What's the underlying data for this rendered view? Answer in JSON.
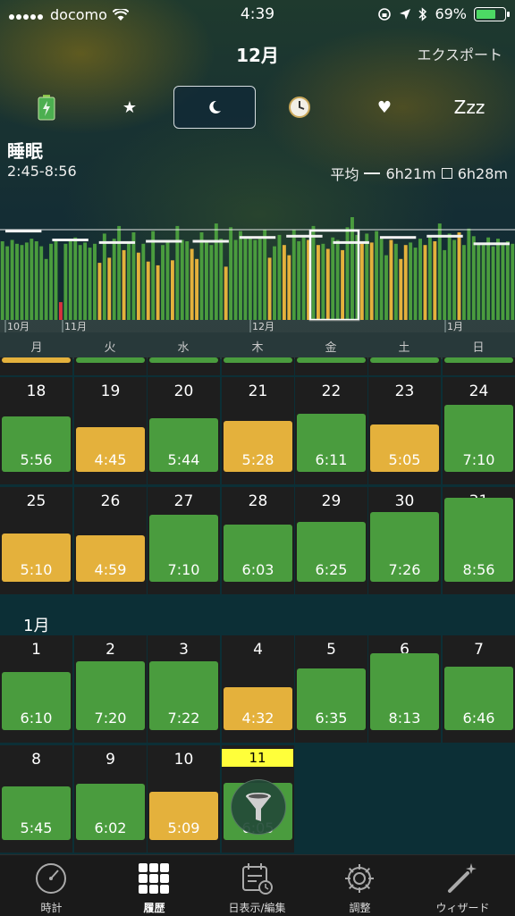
{
  "status_bar": {
    "carrier": "docomo",
    "time": "4:39",
    "battery": "69%",
    "battery_level": 0.69
  },
  "header": {
    "title": "12月",
    "export_label": "エクスポート"
  },
  "modes": {
    "zzz_label": "Zzz"
  },
  "summary": {
    "title": "睡眠",
    "range": "2:45-8:56",
    "avg_label": "平均",
    "avg_line_value": "6h21m",
    "avg_box_value": "6h28m"
  },
  "chart_data": {
    "type": "bar",
    "month_labels": [
      "10月",
      "11月",
      "12月",
      "1月"
    ],
    "values": [
      6.2,
      5.8,
      6.3,
      6.0,
      5.9,
      6.1,
      6.4,
      6.2,
      5.8,
      4.8,
      6.0,
      6.3,
      6.1,
      6.0,
      6.2,
      6.5,
      5.9,
      6.1,
      5.7,
      6.0,
      4.5,
      6.8,
      4.9,
      6.4,
      7.4,
      5.5,
      6.2,
      6.9,
      5.3,
      6.0,
      4.6,
      7.0,
      4.3,
      5.9,
      6.1,
      4.7,
      7.4,
      6.3,
      6.2,
      5.6,
      4.8,
      6.9,
      6.3,
      5.9,
      7.6,
      6.4,
      4.2,
      7.3,
      6.3,
      7.0,
      6.4,
      6.5,
      6.3,
      6.4,
      7.1,
      4.9,
      5.8,
      6.7,
      5.9,
      5.1,
      7.1,
      6.2,
      6.5,
      6.3,
      7.4,
      5.9,
      6.0,
      5.6,
      6.5,
      6.3,
      5.5,
      7.3,
      8.1,
      6.7,
      6.2,
      6.8,
      6.1,
      7.0,
      6.4,
      5.1,
      6.3,
      6.0,
      4.8,
      5.9,
      6.1,
      5.7,
      6.4,
      5.9,
      6.5,
      6.2,
      7.6,
      5.5,
      6.8,
      6.3,
      6.9,
      5.9,
      7.2,
      6.6,
      6.0,
      5.9,
      6.5,
      5.8,
      6.4,
      5.9,
      6.2,
      6.0
    ],
    "colors": [
      "g",
      "g",
      "g",
      "g",
      "g",
      "g",
      "g",
      "g",
      "g",
      "g",
      "g",
      "g",
      "r",
      "g",
      "g",
      "g",
      "g",
      "g",
      "g",
      "g",
      "y",
      "g",
      "y",
      "g",
      "g",
      "y",
      "g",
      "g",
      "y",
      "g",
      "y",
      "g",
      "y",
      "g",
      "g",
      "y",
      "g",
      "g",
      "g",
      "y",
      "y",
      "g",
      "g",
      "g",
      "g",
      "g",
      "y",
      "g",
      "g",
      "g",
      "g",
      "g",
      "g",
      "g",
      "g",
      "y",
      "g",
      "g",
      "y",
      "y",
      "g",
      "g",
      "g",
      "y",
      "g",
      "y",
      "g",
      "y",
      "g",
      "g",
      "y",
      "g",
      "g",
      "g",
      "y",
      "g",
      "y",
      "g",
      "g",
      "g",
      "y",
      "g",
      "y",
      "y",
      "g",
      "g",
      "g",
      "y",
      "g",
      "y",
      "g",
      "g",
      "g",
      "g",
      "y",
      "g",
      "g",
      "g",
      "g",
      "g",
      "g",
      "g",
      "g",
      "g",
      "g",
      "g"
    ],
    "weekly_averages": [
      7.0,
      6.3,
      6.1,
      6.2,
      6.2,
      6.5,
      6.6,
      6.1,
      6.5,
      6.6,
      6.0
    ],
    "overall_average_hours": 6.35,
    "highlighted_week": 7,
    "ylim": [
      0,
      10
    ],
    "legend": {
      "line_label": "平均",
      "line_value": "6h21m",
      "box_value": "6h28m"
    }
  },
  "weekdays": [
    "月",
    "火",
    "水",
    "木",
    "金",
    "土",
    "日"
  ],
  "december": {
    "weeks": [
      [
        {
          "day": "18",
          "value": "5:56",
          "hours": 5.93,
          "color": "green"
        },
        {
          "day": "19",
          "value": "4:45",
          "hours": 4.75,
          "color": "yellow"
        },
        {
          "day": "20",
          "value": "5:44",
          "hours": 5.73,
          "color": "green"
        },
        {
          "day": "21",
          "value": "5:28",
          "hours": 5.47,
          "color": "yellow"
        },
        {
          "day": "22",
          "value": "6:11",
          "hours": 6.18,
          "color": "green"
        },
        {
          "day": "23",
          "value": "5:05",
          "hours": 5.08,
          "color": "yellow"
        },
        {
          "day": "24",
          "value": "7:10",
          "hours": 7.17,
          "color": "green"
        }
      ],
      [
        {
          "day": "25",
          "value": "5:10",
          "hours": 5.17,
          "color": "yellow"
        },
        {
          "day": "26",
          "value": "4:59",
          "hours": 4.98,
          "color": "yellow"
        },
        {
          "day": "27",
          "value": "7:10",
          "hours": 7.17,
          "color": "green"
        },
        {
          "day": "28",
          "value": "6:03",
          "hours": 6.05,
          "color": "green"
        },
        {
          "day": "29",
          "value": "6:25",
          "hours": 6.42,
          "color": "green"
        },
        {
          "day": "30",
          "value": "7:26",
          "hours": 7.43,
          "color": "green"
        },
        {
          "day": "31",
          "value": "8:56",
          "hours": 8.93,
          "color": "green"
        }
      ]
    ]
  },
  "january": {
    "label": "1月",
    "weeks": [
      [
        {
          "day": "1",
          "value": "6:10",
          "hours": 6.17,
          "color": "green"
        },
        {
          "day": "2",
          "value": "7:20",
          "hours": 7.33,
          "color": "green"
        },
        {
          "day": "3",
          "value": "7:22",
          "hours": 7.37,
          "color": "green"
        },
        {
          "day": "4",
          "value": "4:32",
          "hours": 4.53,
          "color": "yellow"
        },
        {
          "day": "5",
          "value": "6:35",
          "hours": 6.58,
          "color": "green"
        },
        {
          "day": "6",
          "value": "8:13",
          "hours": 8.22,
          "color": "green"
        },
        {
          "day": "7",
          "value": "6:46",
          "hours": 6.77,
          "color": "green"
        }
      ],
      [
        {
          "day": "8",
          "value": "5:45",
          "hours": 5.75,
          "color": "green"
        },
        {
          "day": "9",
          "value": "6:02",
          "hours": 6.03,
          "color": "green"
        },
        {
          "day": "10",
          "value": "5:09",
          "hours": 5.15,
          "color": "yellow"
        },
        {
          "day": "11",
          "value": "6:05",
          "hours": 6.08,
          "color": "green",
          "today": true
        }
      ]
    ]
  },
  "tabs": [
    {
      "label": "時計",
      "icon": "gauge-icon"
    },
    {
      "label": "履歴",
      "icon": "grid-icon",
      "active": true
    },
    {
      "label": "日表示/編集",
      "icon": "calendar-clock-icon"
    },
    {
      "label": "調整",
      "icon": "gear-icon"
    },
    {
      "label": "ウィザード",
      "icon": "magic-wand-icon"
    }
  ],
  "colors": {
    "green": "#4a9c3e",
    "yellow": "#e4b13c",
    "red": "#d9323c",
    "today": "#ffff3a"
  }
}
